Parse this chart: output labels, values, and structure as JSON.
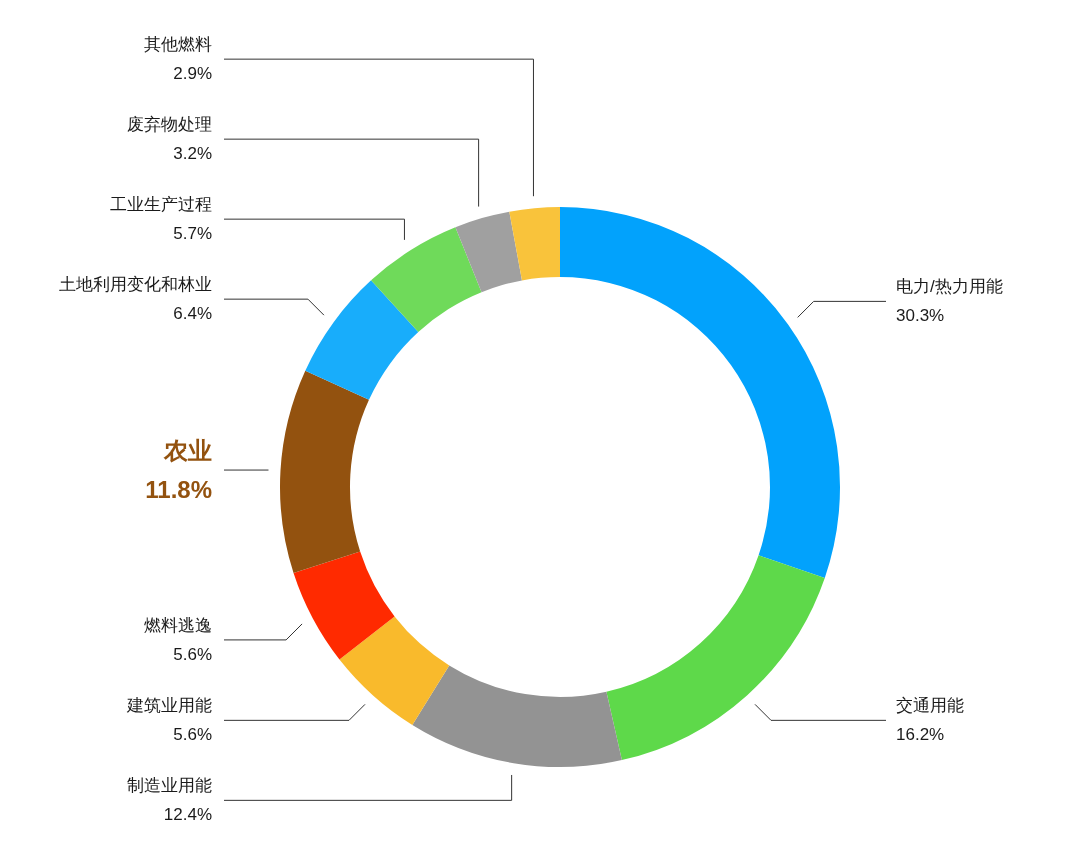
{
  "chart_data": {
    "type": "donut",
    "categories": [
      "电力/热力用能",
      "交通用能",
      "制造业用能",
      "建筑业用能",
      "燃料逃逸",
      "农业",
      "土地利用变化和林业",
      "工业生产过程",
      "废弃物处理",
      "其他燃料"
    ],
    "values": [
      30.3,
      16.2,
      12.4,
      5.6,
      5.6,
      11.8,
      6.4,
      5.7,
      3.2,
      2.9
    ],
    "colors": [
      "#02a2fc",
      "#5ed94a",
      "#939393",
      "#f9ba2c",
      "#ff2a00",
      "#93520f",
      "#18adfb",
      "#6fda5a",
      "#a0a0a0",
      "#f9c33b"
    ],
    "value_labels": [
      "30.3%",
      "16.2%",
      "12.4%",
      "5.6%",
      "5.6%",
      "11.8%",
      "6.4%",
      "5.7%",
      "3.2%",
      "2.9%"
    ]
  }
}
